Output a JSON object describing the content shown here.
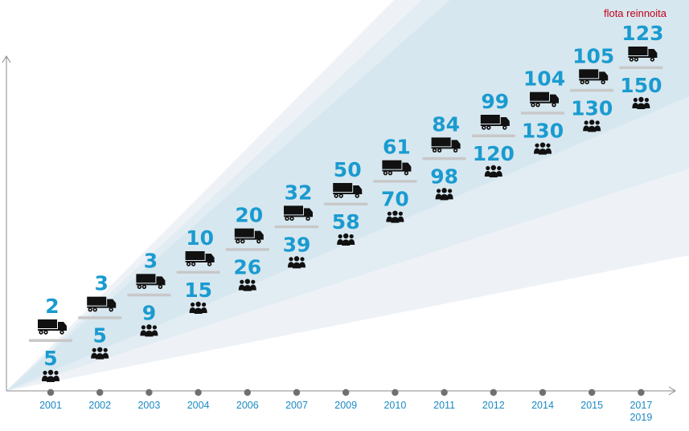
{
  "chart_data": {
    "type": "bar",
    "annotation": "flota reinnoita",
    "categories": [
      [
        "2001"
      ],
      [
        "2002"
      ],
      [
        "2003"
      ],
      [
        "2004"
      ],
      [
        "2006"
      ],
      [
        "2007"
      ],
      [
        "2009"
      ],
      [
        "2010"
      ],
      [
        "2011"
      ],
      [
        "2012"
      ],
      [
        "2014"
      ],
      [
        "2015"
      ],
      [
        "2017",
        "2019"
      ]
    ],
    "series": [
      {
        "values": [
          2,
          3,
          3,
          10,
          20,
          32,
          50,
          61,
          84,
          99,
          104,
          105,
          123
        ],
        "icon": "truck-icon"
      },
      {
        "values": [
          5,
          5,
          9,
          15,
          26,
          39,
          58,
          70,
          98,
          120,
          130,
          130,
          150
        ],
        "icon": "people-icon"
      }
    ],
    "colors": {
      "value_text": "#1a9bd0",
      "year_text": "#1a8ac4",
      "annotation_text": "#c0001a",
      "icon": "#111111",
      "separator": "#c8c8c8",
      "axis_dot": "#707070"
    }
  }
}
